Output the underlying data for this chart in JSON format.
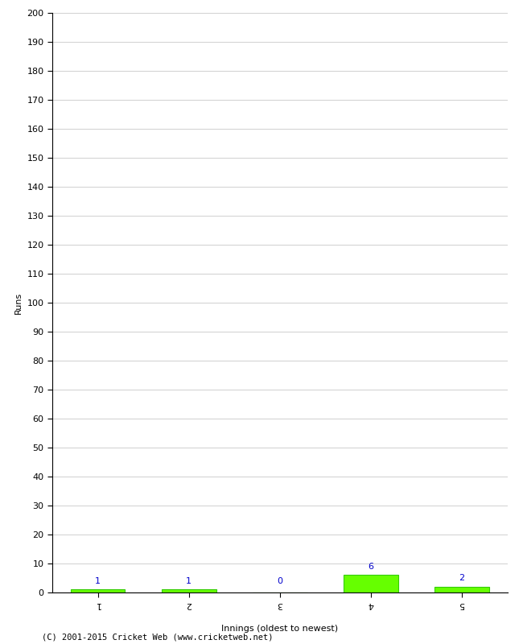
{
  "innings": [
    1,
    2,
    3,
    4,
    5
  ],
  "runs": [
    1,
    1,
    0,
    6,
    2
  ],
  "bar_color": "#66ff00",
  "bar_edge_color": "#33cc00",
  "ylabel": "Runs",
  "xlabel": "Innings (oldest to newest)",
  "ylim": [
    0,
    200
  ],
  "yticks": [
    0,
    10,
    20,
    30,
    40,
    50,
    60,
    70,
    80,
    90,
    100,
    110,
    120,
    130,
    140,
    150,
    160,
    170,
    180,
    190,
    200
  ],
  "label_color": "#0000cc",
  "label_fontsize": 8,
  "tick_fontsize": 8,
  "axis_label_fontsize": 8,
  "copyright": "(C) 2001-2015 Cricket Web (www.cricketweb.net)",
  "background_color": "#ffffff",
  "grid_color": "#d0d0d0"
}
